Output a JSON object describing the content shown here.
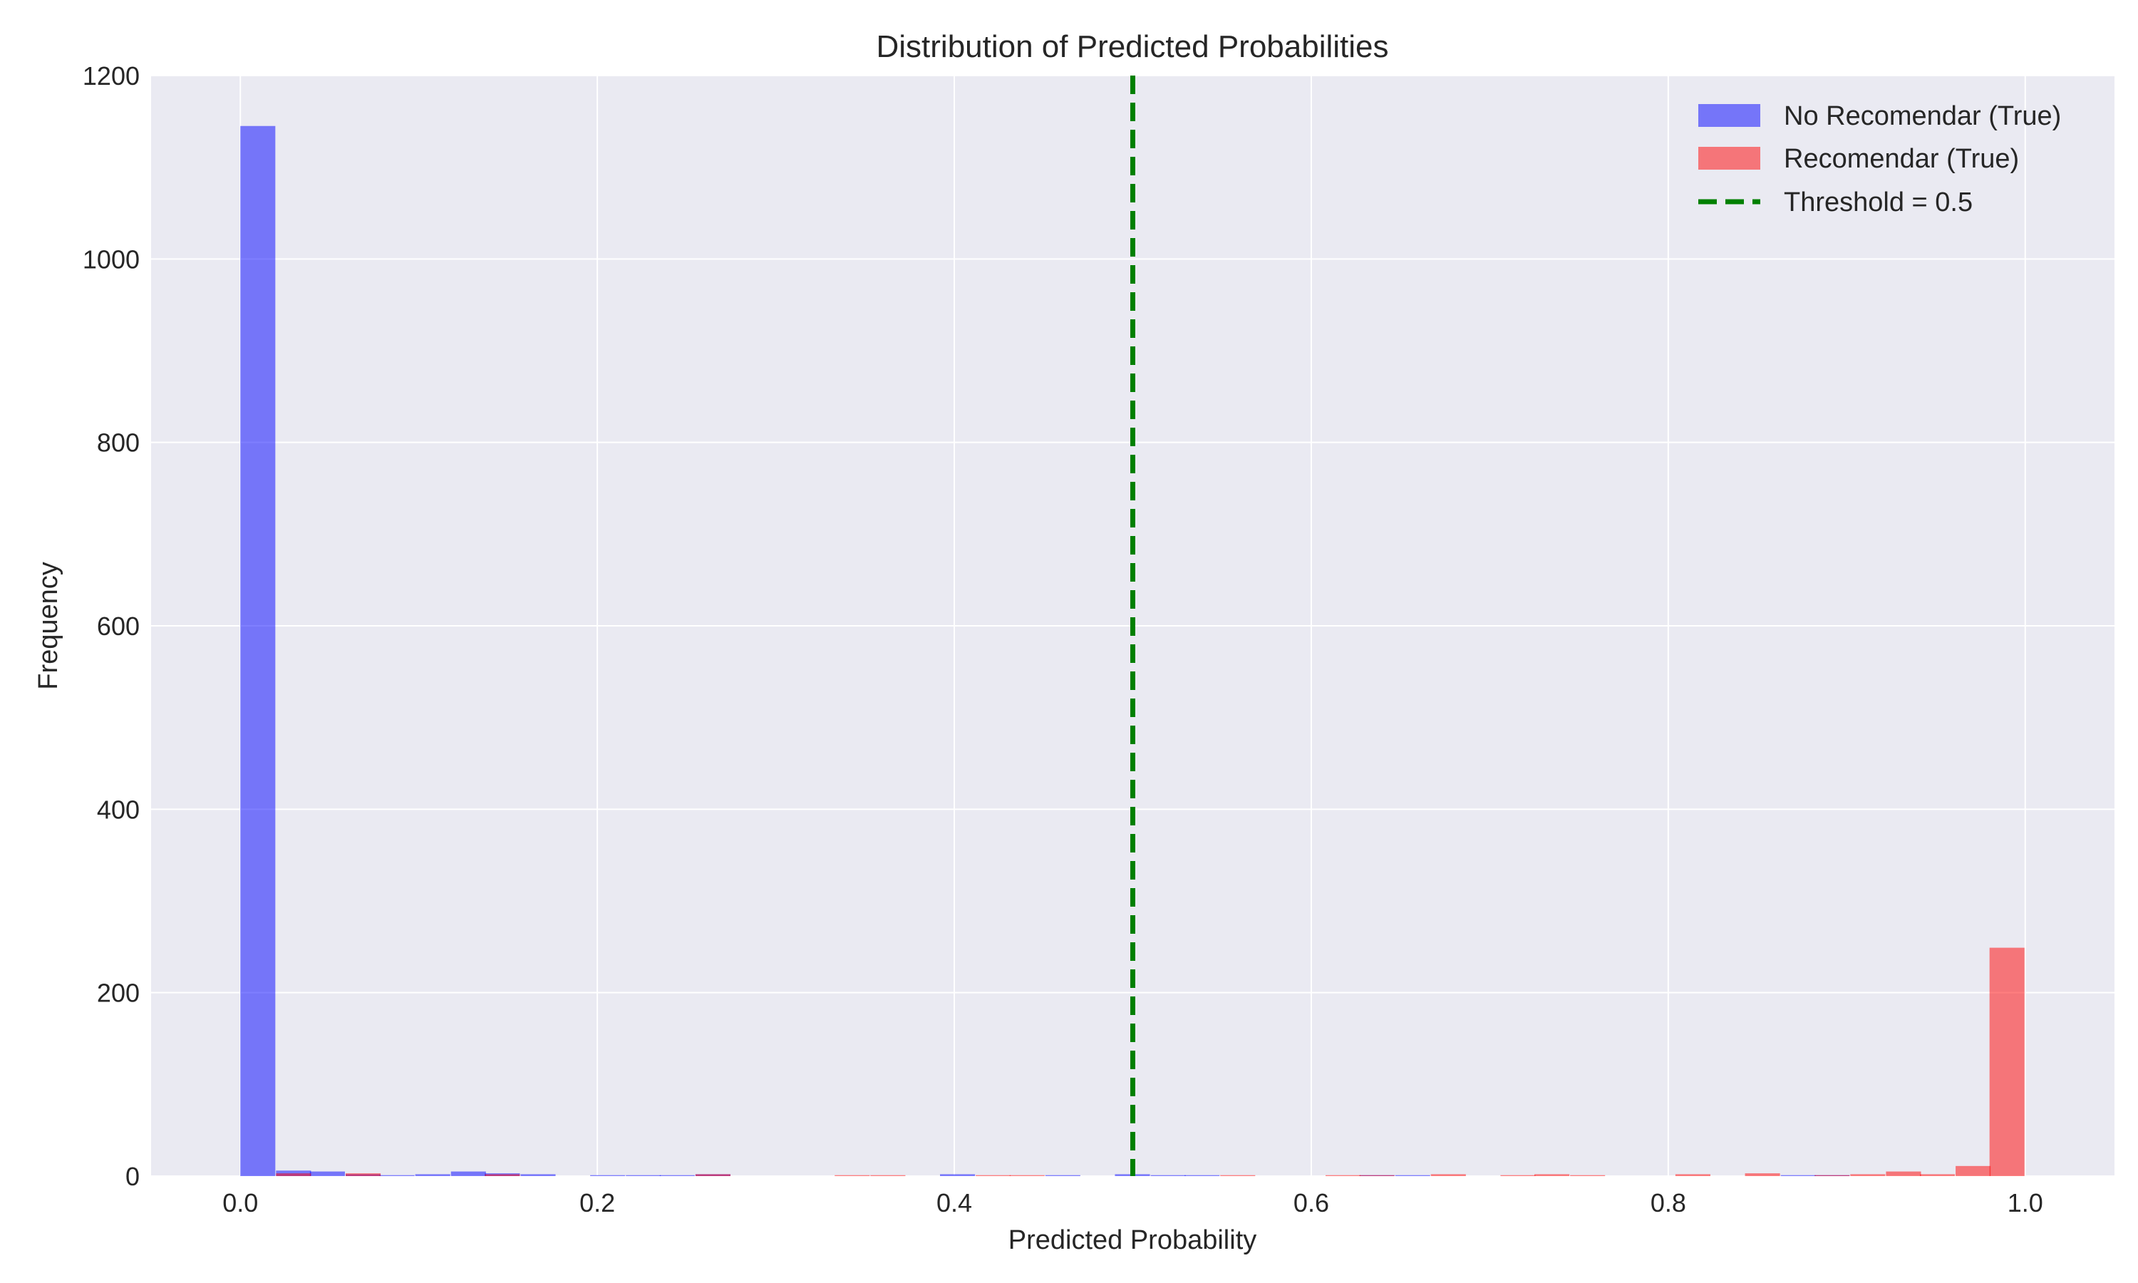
{
  "chart_data": {
    "type": "histogram",
    "title": "Distribution of Predicted Probabilities",
    "xlabel": "Predicted Probability",
    "ylabel": "Frequency",
    "xlim": [
      -0.05,
      1.05
    ],
    "ylim": [
      0,
      1200
    ],
    "xticks": [
      0.0,
      0.2,
      0.4,
      0.6,
      0.8,
      1.0
    ],
    "xtick_labels": [
      "0.0",
      "0.2",
      "0.4",
      "0.6",
      "0.8",
      "1.0"
    ],
    "yticks": [
      0,
      200,
      400,
      600,
      800,
      1000,
      1200
    ],
    "ytick_labels": [
      "0",
      "200",
      "400",
      "600",
      "800",
      "1000",
      "1200"
    ],
    "grid": true,
    "legend_position": "top-right",
    "series": [
      {
        "name": "No Recomendar (True)",
        "color": "#0000ff",
        "opacity": 0.5,
        "bin_width": 0.0196,
        "bins": [
          {
            "x0": 0.0,
            "value": 1145
          },
          {
            "x0": 0.02,
            "value": 6
          },
          {
            "x0": 0.039,
            "value": 5
          },
          {
            "x0": 0.059,
            "value": 2
          },
          {
            "x0": 0.078,
            "value": 1
          },
          {
            "x0": 0.098,
            "value": 2
          },
          {
            "x0": 0.118,
            "value": 5
          },
          {
            "x0": 0.137,
            "value": 3
          },
          {
            "x0": 0.157,
            "value": 2
          },
          {
            "x0": 0.196,
            "value": 1
          },
          {
            "x0": 0.216,
            "value": 1
          },
          {
            "x0": 0.235,
            "value": 1
          },
          {
            "x0": 0.255,
            "value": 2
          },
          {
            "x0": 0.392,
            "value": 2
          },
          {
            "x0": 0.451,
            "value": 1
          },
          {
            "x0": 0.49,
            "value": 2
          },
          {
            "x0": 0.51,
            "value": 1
          },
          {
            "x0": 0.529,
            "value": 1
          },
          {
            "x0": 0.627,
            "value": 1
          },
          {
            "x0": 0.647,
            "value": 1
          },
          {
            "x0": 0.863,
            "value": 1
          },
          {
            "x0": 0.882,
            "value": 1
          }
        ]
      },
      {
        "name": "Recomendar (True)",
        "color": "#ff0000",
        "opacity": 0.5,
        "bin_width": 0.0196,
        "bins": [
          {
            "x0": 0.02,
            "value": 3
          },
          {
            "x0": 0.059,
            "value": 3
          },
          {
            "x0": 0.137,
            "value": 2
          },
          {
            "x0": 0.255,
            "value": 2
          },
          {
            "x0": 0.333,
            "value": 1
          },
          {
            "x0": 0.353,
            "value": 1
          },
          {
            "x0": 0.412,
            "value": 1
          },
          {
            "x0": 0.431,
            "value": 1
          },
          {
            "x0": 0.549,
            "value": 1
          },
          {
            "x0": 0.608,
            "value": 1
          },
          {
            "x0": 0.627,
            "value": 1
          },
          {
            "x0": 0.667,
            "value": 2
          },
          {
            "x0": 0.706,
            "value": 1
          },
          {
            "x0": 0.725,
            "value": 2
          },
          {
            "x0": 0.745,
            "value": 1
          },
          {
            "x0": 0.804,
            "value": 2
          },
          {
            "x0": 0.843,
            "value": 3
          },
          {
            "x0": 0.882,
            "value": 1
          },
          {
            "x0": 0.902,
            "value": 2
          },
          {
            "x0": 0.922,
            "value": 5
          },
          {
            "x0": 0.941,
            "value": 2
          },
          {
            "x0": 0.961,
            "value": 11
          },
          {
            "x0": 0.98,
            "value": 249
          }
        ]
      }
    ],
    "threshold": {
      "name": "Threshold = 0.5",
      "x": 0.5,
      "color": "#008000",
      "style": "dashed"
    },
    "colors": {
      "plot_background": "#eaeaf2",
      "grid": "#ffffff",
      "text": "#262626"
    }
  }
}
